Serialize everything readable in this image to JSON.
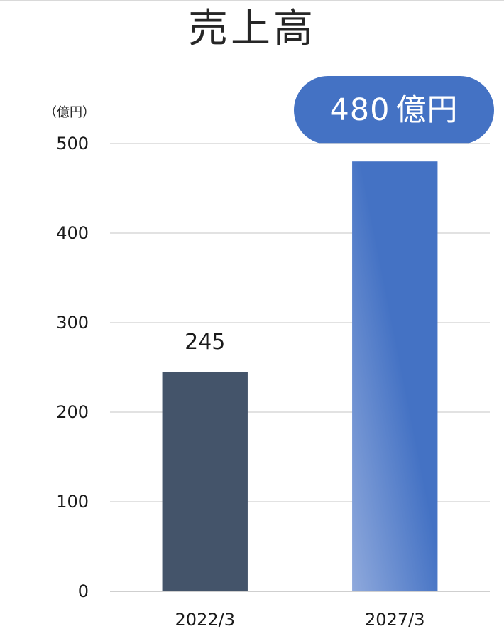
{
  "chart_data": {
    "type": "bar",
    "title": "売上高",
    "unit_label": "（億円）",
    "categories": [
      "2022/3",
      "2027/3"
    ],
    "values": [
      245,
      480
    ],
    "data_labels": [
      "245",
      ""
    ],
    "bar_colors": [
      "#44546a",
      "#4472c4"
    ],
    "ylim": [
      0,
      500
    ],
    "yticks": [
      0,
      100,
      200,
      300,
      400,
      500
    ],
    "grid": true,
    "xlabel": "",
    "ylabel": ""
  },
  "callout": {
    "value": "480",
    "unit": "億円",
    "color": "#4472c4"
  }
}
